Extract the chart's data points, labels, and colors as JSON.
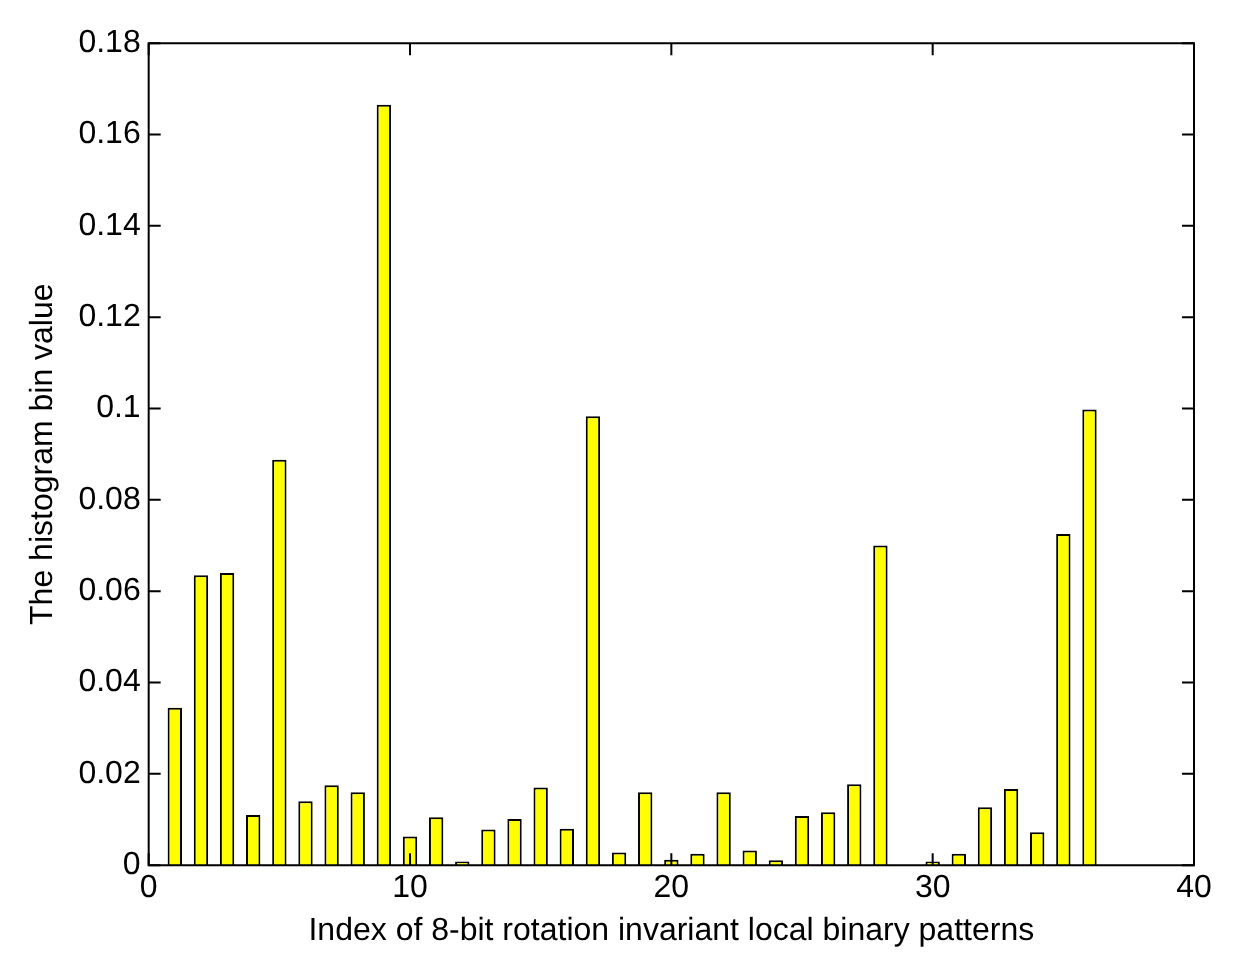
{
  "chart_data": {
    "type": "bar",
    "xlabel": "Index of 8-bit rotation invariant local binary patterns",
    "ylabel": "The histogram bin value",
    "x": [
      1,
      2,
      3,
      4,
      5,
      6,
      7,
      8,
      9,
      10,
      11,
      12,
      13,
      14,
      15,
      16,
      17,
      18,
      19,
      20,
      21,
      22,
      23,
      24,
      25,
      26,
      27,
      28,
      29,
      30,
      31,
      32,
      33,
      34,
      35,
      36
    ],
    "values": [
      0.0345,
      0.0635,
      0.064,
      0.011,
      0.0888,
      0.014,
      0.0175,
      0.016,
      0.1665,
      0.0063,
      0.0105,
      0.0008,
      0.0078,
      0.0101,
      0.017,
      0.008,
      0.0983,
      0.0028,
      0.016,
      0.0012,
      0.0025,
      0.016,
      0.0032,
      0.0011,
      0.0108,
      0.0116,
      0.0177,
      0.07,
      0,
      0.0008,
      0.0025,
      0.0127,
      0.0167,
      0.0072,
      0.0725,
      0.0998
    ],
    "color": "#ffff00",
    "xlim": [
      0,
      40
    ],
    "xticks": [
      0,
      10,
      20,
      30,
      40
    ],
    "ylim": [
      0,
      0.18
    ],
    "yticks": [
      0,
      0.02,
      0.04,
      0.06,
      0.08,
      0.1,
      0.12,
      0.14,
      0.16,
      0.18
    ],
    "grid": false,
    "legend": false
  }
}
